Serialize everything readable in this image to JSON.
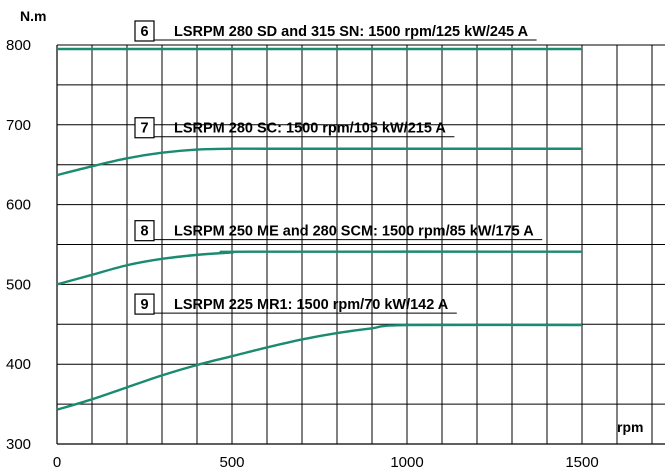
{
  "chart_data": {
    "type": "line",
    "xlabel": "rpm",
    "ylabel": "N.m",
    "xlim": [
      0,
      1750
    ],
    "ylim": [
      300,
      800
    ],
    "x_ticks": [
      0,
      500,
      1000,
      1500
    ],
    "y_ticks": [
      300,
      400,
      500,
      600,
      700,
      800
    ],
    "grid": true,
    "line_color": "#1a8a70",
    "series": [
      {
        "number": "6",
        "name": "LSRPM 280 SD and 315 SN: 1500 rpm/125 kW/245 A",
        "x": [
          0,
          1500
        ],
        "y": [
          795,
          795
        ]
      },
      {
        "number": "7",
        "name": "LSRPM 280 SC: 1500 rpm/105 kW/215 A",
        "x": [
          0,
          100,
          200,
          300,
          400,
          500,
          600,
          1500
        ],
        "y": [
          637,
          648,
          658,
          665,
          669,
          670,
          670,
          670
        ]
      },
      {
        "number": "8",
        "name": "LSRPM 250 ME and 280 SCM: 1500 rpm/85 kW/175 A",
        "x": [
          0,
          100,
          200,
          300,
          400,
          500,
          550,
          1500
        ],
        "y": [
          500,
          512,
          524,
          532,
          537,
          540,
          541,
          541
        ]
      },
      {
        "number": "9",
        "name": "LSRPM  225 MR1: 1500 rpm/70 kW/142 A",
        "x": [
          0,
          100,
          200,
          300,
          400,
          500,
          600,
          700,
          800,
          900,
          1000,
          1500
        ],
        "y": [
          343,
          356,
          371,
          386,
          399,
          410,
          421,
          431,
          439,
          445,
          449,
          449
        ]
      }
    ]
  }
}
